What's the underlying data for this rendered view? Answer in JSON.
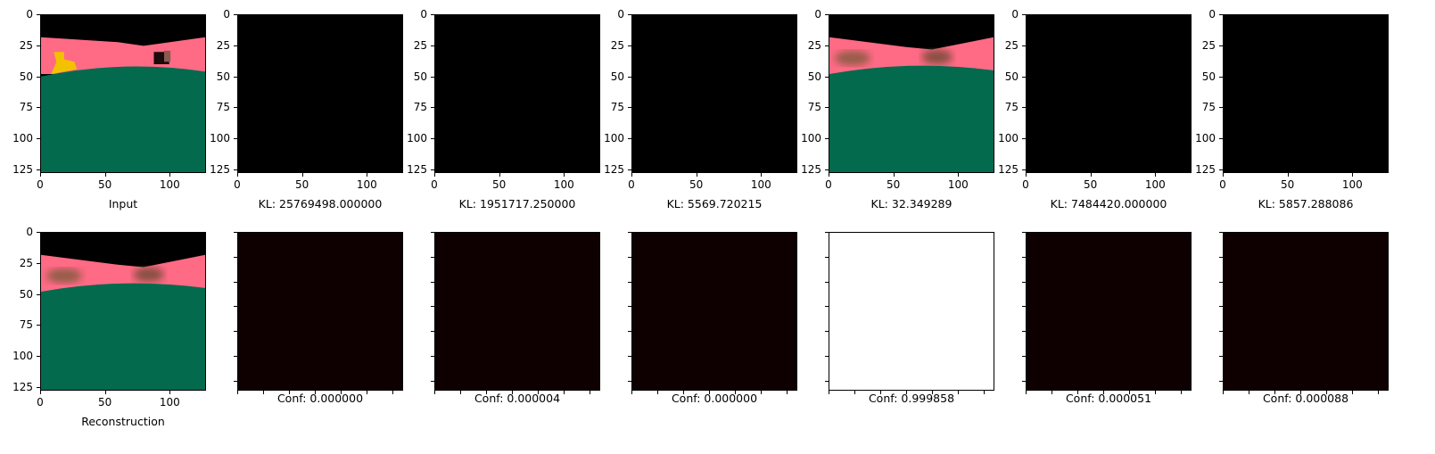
{
  "axis": {
    "x_ticks": [
      "0",
      "50",
      "100"
    ],
    "y_ticks": [
      "0",
      "25",
      "50",
      "75",
      "100",
      "125"
    ],
    "xlim": [
      0,
      128
    ],
    "ylim": [
      128,
      0
    ]
  },
  "colors": {
    "sky": "#000000",
    "band": "#ff6a85",
    "ground": "#036a4e",
    "dark_panel": "#0e0001",
    "white_panel": "#ffffff",
    "blob": "#7a5a3a",
    "yellow": "#f2c200"
  },
  "top_row": [
    {
      "caption": "Input",
      "image": "scene"
    },
    {
      "caption": "KL: 25769498.000000",
      "image": "black"
    },
    {
      "caption": "KL: 1951717.250000",
      "image": "black"
    },
    {
      "caption": "KL: 5569.720215",
      "image": "black"
    },
    {
      "caption": "KL: 32.349289",
      "image": "scene-blurry"
    },
    {
      "caption": "KL: 7484420.000000",
      "image": "black"
    },
    {
      "caption": "KL: 5857.288086",
      "image": "black"
    }
  ],
  "bottom_row": [
    {
      "caption": "Reconstruction",
      "image": "scene-blurry"
    },
    {
      "caption": "Conf: 0.000000",
      "image": "dark"
    },
    {
      "caption": "Conf: 0.000004",
      "image": "dark"
    },
    {
      "caption": "Conf: 0.000000",
      "image": "dark"
    },
    {
      "caption": "Conf: 0.999858",
      "image": "white"
    },
    {
      "caption": "Conf: 0.000051",
      "image": "dark"
    },
    {
      "caption": "Conf: 0.000088",
      "image": "dark"
    }
  ]
}
